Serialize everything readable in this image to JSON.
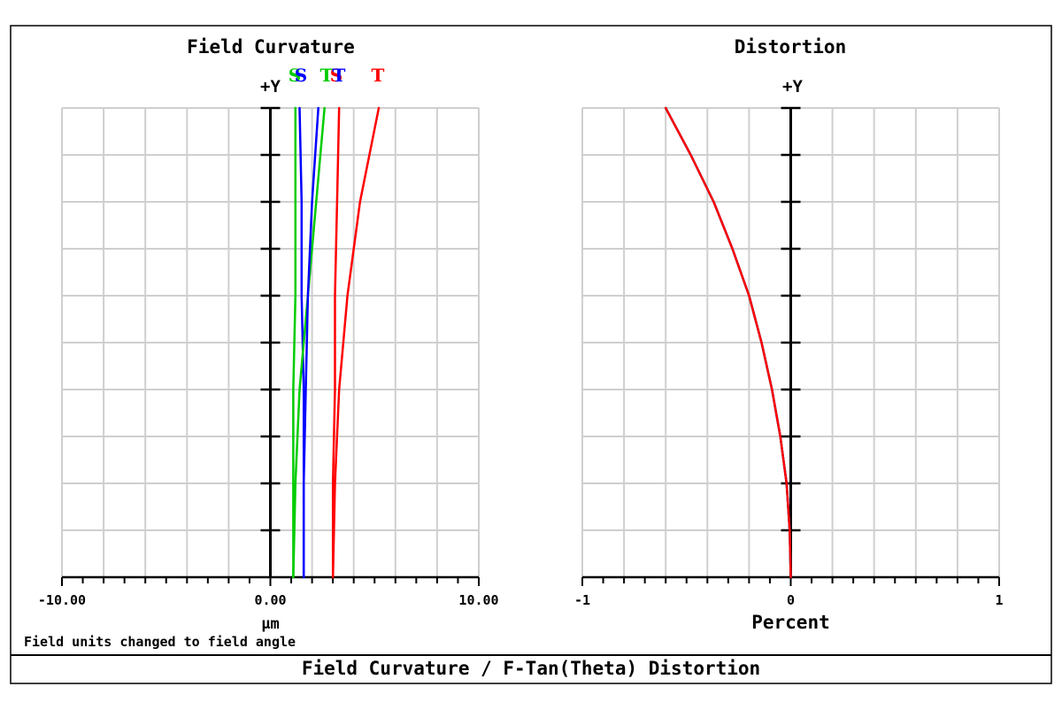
{
  "footer": {
    "note": "Field units changed to field angle",
    "title": "Field Curvature / F-Tan(Theta) Distortion"
  },
  "chart_data": [
    {
      "type": "line",
      "title": "Field Curvature",
      "axis_label_y": "+Y",
      "xlabel": "µm",
      "xlim": [
        -10,
        10
      ],
      "ylim": [
        0,
        1
      ],
      "x_tick_labels": [
        "-10.00",
        "0.00",
        "10.00"
      ],
      "grid": true,
      "legend": {
        "position": "top",
        "entries": [
          {
            "label": "S",
            "color": "#00cc00"
          },
          {
            "label": "S",
            "color": "#0000ff"
          },
          {
            "label": "T",
            "color": "#00cc00"
          },
          {
            "label": "S",
            "color": "#ff0000"
          },
          {
            "label": "T",
            "color": "#0000ff"
          },
          {
            "label": "T",
            "color": "#ff0000"
          }
        ]
      },
      "series": [
        {
          "label": "S",
          "color": "#00cc00",
          "points": [
            [
              1.1,
              0
            ],
            [
              1.1,
              0.2
            ],
            [
              1.1,
              0.4
            ],
            [
              1.2,
              0.6
            ],
            [
              1.2,
              0.8
            ],
            [
              1.2,
              1.0
            ]
          ]
        },
        {
          "label": "S",
          "color": "#0000ff",
          "points": [
            [
              1.6,
              0
            ],
            [
              1.6,
              0.2
            ],
            [
              1.6,
              0.4
            ],
            [
              1.5,
              0.6
            ],
            [
              1.5,
              0.8
            ],
            [
              1.4,
              1.0
            ]
          ]
        },
        {
          "label": "T",
          "color": "#00cc00",
          "points": [
            [
              1.1,
              0
            ],
            [
              1.2,
              0.2
            ],
            [
              1.4,
              0.4
            ],
            [
              1.8,
              0.6
            ],
            [
              2.2,
              0.8
            ],
            [
              2.6,
              1.0
            ]
          ]
        },
        {
          "label": "T",
          "color": "#0000ff",
          "points": [
            [
              1.6,
              0
            ],
            [
              1.6,
              0.2
            ],
            [
              1.7,
              0.4
            ],
            [
              1.8,
              0.6
            ],
            [
              2.0,
              0.8
            ],
            [
              2.3,
              1.0
            ]
          ]
        },
        {
          "label": "S",
          "color": "#ff0000",
          "points": [
            [
              3.0,
              0
            ],
            [
              3.0,
              0.2
            ],
            [
              3.1,
              0.4
            ],
            [
              3.1,
              0.6
            ],
            [
              3.2,
              0.8
            ],
            [
              3.3,
              1.0
            ]
          ]
        },
        {
          "label": "T",
          "color": "#ff0000",
          "points": [
            [
              3.0,
              0
            ],
            [
              3.1,
              0.2
            ],
            [
              3.3,
              0.4
            ],
            [
              3.7,
              0.6
            ],
            [
              4.3,
              0.8
            ],
            [
              5.2,
              1.0
            ]
          ]
        }
      ]
    },
    {
      "type": "line",
      "title": "Distortion",
      "axis_label_y": "+Y",
      "xlabel": "Percent",
      "xlim": [
        -1,
        1
      ],
      "ylim": [
        0,
        1
      ],
      "x_tick_labels": [
        "-1",
        "0",
        "1"
      ],
      "grid": true,
      "series": [
        {
          "color": "#00cc00",
          "points": [
            [
              0,
              0
            ],
            [
              -0.005,
              0.1
            ],
            [
              -0.02,
              0.2
            ],
            [
              -0.05,
              0.3
            ],
            [
              -0.09,
              0.4
            ],
            [
              -0.14,
              0.5
            ],
            [
              -0.2,
              0.6
            ],
            [
              -0.28,
              0.7
            ],
            [
              -0.37,
              0.8
            ],
            [
              -0.48,
              0.9
            ],
            [
              -0.6,
              1.0
            ]
          ]
        },
        {
          "color": "#0000ff",
          "points": [
            [
              0,
              0
            ],
            [
              -0.005,
              0.1
            ],
            [
              -0.02,
              0.2
            ],
            [
              -0.05,
              0.3
            ],
            [
              -0.09,
              0.4
            ],
            [
              -0.14,
              0.5
            ],
            [
              -0.2,
              0.6
            ],
            [
              -0.28,
              0.7
            ],
            [
              -0.37,
              0.8
            ],
            [
              -0.48,
              0.9
            ],
            [
              -0.6,
              1.0
            ]
          ]
        },
        {
          "color": "#ff0000",
          "points": [
            [
              0,
              0
            ],
            [
              -0.005,
              0.1
            ],
            [
              -0.02,
              0.2
            ],
            [
              -0.05,
              0.3
            ],
            [
              -0.09,
              0.4
            ],
            [
              -0.14,
              0.5
            ],
            [
              -0.2,
              0.6
            ],
            [
              -0.28,
              0.7
            ],
            [
              -0.37,
              0.8
            ],
            [
              -0.48,
              0.9
            ],
            [
              -0.6,
              1.0
            ]
          ]
        }
      ]
    }
  ]
}
